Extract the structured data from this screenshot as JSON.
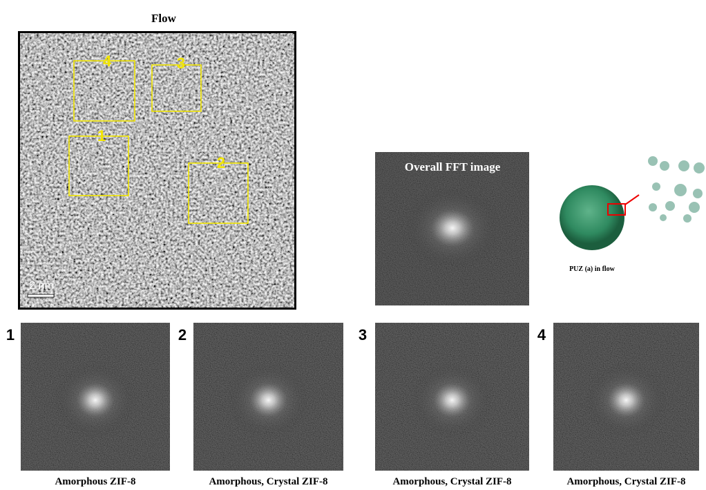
{
  "figure": {
    "title": "Flow",
    "tem_image": {
      "boxes": [
        {
          "label": "4"
        },
        {
          "label": "3"
        },
        {
          "label": "1"
        },
        {
          "label": "2"
        }
      ],
      "scale_bar": "2 nm"
    },
    "overall_fft": {
      "title": "Overall FFT image"
    },
    "model": {
      "caption": "PUZ (a) in flow"
    },
    "panels": [
      {
        "label": "1",
        "caption": "Amorphous ZIF-8"
      },
      {
        "label": "2",
        "caption": "Amorphous, Crystal ZIF-8"
      },
      {
        "label": "3",
        "caption": "Amorphous, Crystal ZIF-8"
      },
      {
        "label": "4",
        "caption": "Amorphous, Crystal ZIF-8"
      }
    ]
  }
}
